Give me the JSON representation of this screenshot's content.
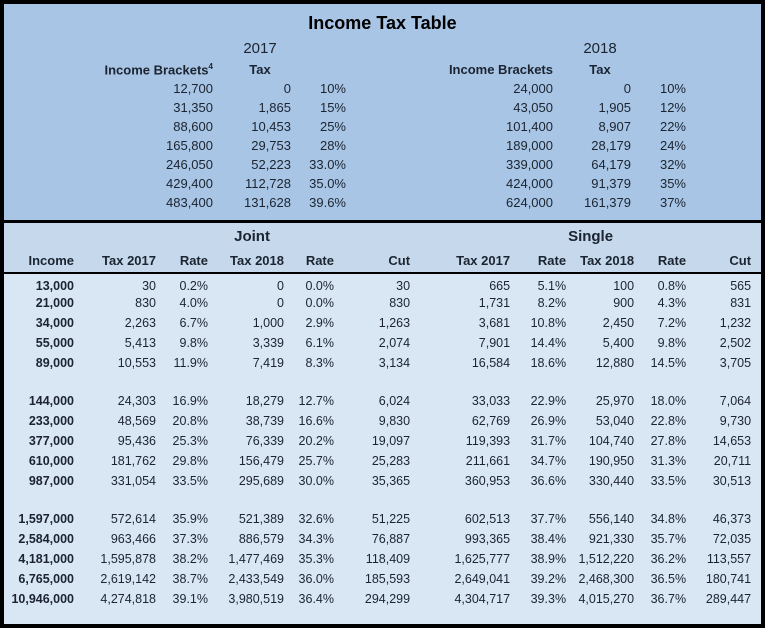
{
  "title": "Income Tax Table",
  "colors": {
    "top_background": "#a8c5e5",
    "header_band_background": "#c6d9ec",
    "data_background": "#d9e6f3",
    "border": "#000000",
    "text": "#1b2430"
  },
  "brackets": {
    "y2017": {
      "year": "2017",
      "col1": "Income Brackets",
      "col1_sup": "4",
      "col2": "Tax",
      "rows": [
        [
          "12,700",
          "0",
          "10%"
        ],
        [
          "31,350",
          "1,865",
          "15%"
        ],
        [
          "88,600",
          "10,453",
          "25%"
        ],
        [
          "165,800",
          "29,753",
          "28%"
        ],
        [
          "246,050",
          "52,223",
          "33.0%"
        ],
        [
          "429,400",
          "112,728",
          "35.0%"
        ],
        [
          "483,400",
          "131,628",
          "39.6%"
        ]
      ]
    },
    "y2018": {
      "year": "2018",
      "col1": "Income Brackets",
      "col2": "Tax",
      "rows": [
        [
          "24,000",
          "0",
          "10%"
        ],
        [
          "43,050",
          "1,905",
          "12%"
        ],
        [
          "101,400",
          "8,907",
          "22%"
        ],
        [
          "189,000",
          "28,179",
          "24%"
        ],
        [
          "339,000",
          "64,179",
          "32%"
        ],
        [
          "424,000",
          "91,379",
          "35%"
        ],
        [
          "624,000",
          "161,379",
          "37%"
        ]
      ]
    }
  },
  "comparison": {
    "group_headers": [
      "Joint",
      "Single"
    ],
    "columns": [
      "Income",
      "Tax 2017",
      "Rate",
      "Tax 2018",
      "Rate",
      "Cut",
      "Tax 2017",
      "Rate",
      "Tax 2018",
      "Rate",
      "Cut"
    ],
    "groups": [
      [
        [
          "13,000",
          "30",
          "0.2%",
          "0",
          "0.0%",
          "30",
          "665",
          "5.1%",
          "100",
          "0.8%",
          "565"
        ],
        [
          "21,000",
          "830",
          "4.0%",
          "0",
          "0.0%",
          "830",
          "1,731",
          "8.2%",
          "900",
          "4.3%",
          "831"
        ],
        [
          "34,000",
          "2,263",
          "6.7%",
          "1,000",
          "2.9%",
          "1,263",
          "3,681",
          "10.8%",
          "2,450",
          "7.2%",
          "1,232"
        ],
        [
          "55,000",
          "5,413",
          "9.8%",
          "3,339",
          "6.1%",
          "2,074",
          "7,901",
          "14.4%",
          "5,400",
          "9.8%",
          "2,502"
        ],
        [
          "89,000",
          "10,553",
          "11.9%",
          "7,419",
          "8.3%",
          "3,134",
          "16,584",
          "18.6%",
          "12,880",
          "14.5%",
          "3,705"
        ]
      ],
      [
        [
          "144,000",
          "24,303",
          "16.9%",
          "18,279",
          "12.7%",
          "6,024",
          "33,033",
          "22.9%",
          "25,970",
          "18.0%",
          "7,064"
        ],
        [
          "233,000",
          "48,569",
          "20.8%",
          "38,739",
          "16.6%",
          "9,830",
          "62,769",
          "26.9%",
          "53,040",
          "22.8%",
          "9,730"
        ],
        [
          "377,000",
          "95,436",
          "25.3%",
          "76,339",
          "20.2%",
          "19,097",
          "119,393",
          "31.7%",
          "104,740",
          "27.8%",
          "14,653"
        ],
        [
          "610,000",
          "181,762",
          "29.8%",
          "156,479",
          "25.7%",
          "25,283",
          "211,661",
          "34.7%",
          "190,950",
          "31.3%",
          "20,711"
        ],
        [
          "987,000",
          "331,054",
          "33.5%",
          "295,689",
          "30.0%",
          "35,365",
          "360,953",
          "36.6%",
          "330,440",
          "33.5%",
          "30,513"
        ]
      ],
      [
        [
          "1,597,000",
          "572,614",
          "35.9%",
          "521,389",
          "32.6%",
          "51,225",
          "602,513",
          "37.7%",
          "556,140",
          "34.8%",
          "46,373"
        ],
        [
          "2,584,000",
          "963,466",
          "37.3%",
          "886,579",
          "34.3%",
          "76,887",
          "993,365",
          "38.4%",
          "921,330",
          "35.7%",
          "72,035"
        ],
        [
          "4,181,000",
          "1,595,878",
          "38.2%",
          "1,477,469",
          "35.3%",
          "118,409",
          "1,625,777",
          "38.9%",
          "1,512,220",
          "36.2%",
          "113,557"
        ],
        [
          "6,765,000",
          "2,619,142",
          "38.7%",
          "2,433,549",
          "36.0%",
          "185,593",
          "2,649,041",
          "39.2%",
          "2,468,300",
          "36.5%",
          "180,741"
        ],
        [
          "10,946,000",
          "4,274,818",
          "39.1%",
          "3,980,519",
          "36.4%",
          "294,299",
          "4,304,717",
          "39.3%",
          "4,015,270",
          "36.7%",
          "289,447"
        ]
      ]
    ]
  }
}
